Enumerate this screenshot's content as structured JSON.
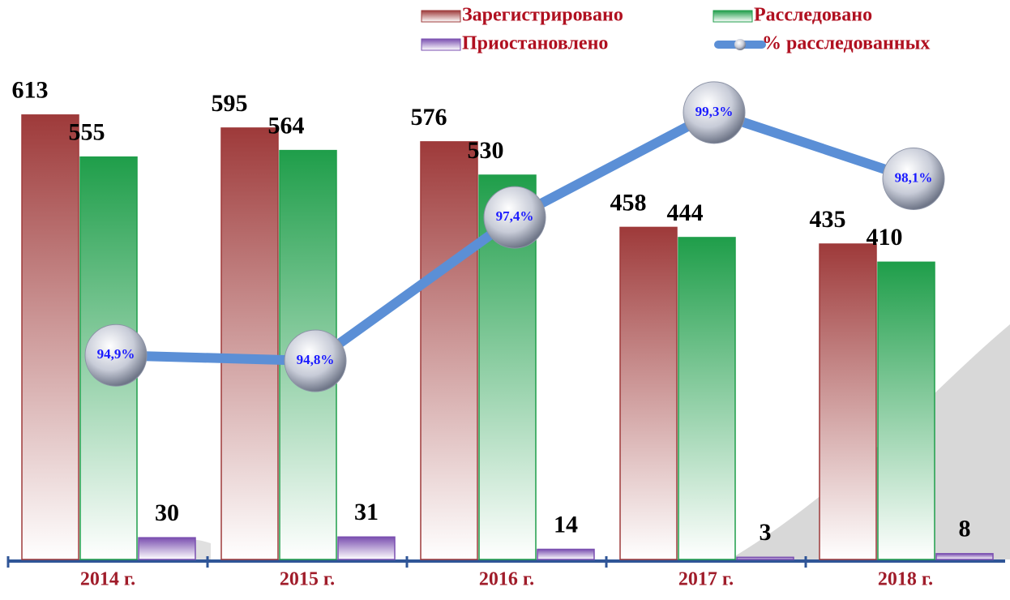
{
  "chart_data": {
    "type": "bar",
    "categories": [
      "2014 г.",
      "2015 г.",
      "2016 г.",
      "2017 г.",
      "2018 г."
    ],
    "series": [
      {
        "name": "Зарегистрировано",
        "color": "#9e3a3a",
        "values": [
          613,
          595,
          576,
          458,
          435
        ]
      },
      {
        "name": "Расследовано",
        "color": "#1f9e4a",
        "values": [
          555,
          564,
          530,
          444,
          410
        ]
      },
      {
        "name": "Приостановлено",
        "color": "#7a4fb0",
        "values": [
          30,
          31,
          14,
          3,
          8
        ]
      },
      {
        "name": "% расследованных",
        "color": "#5b8fd6",
        "type": "line",
        "axis": "y2",
        "values": [
          94.9,
          94.8,
          97.4,
          99.3,
          98.1
        ],
        "value_labels": [
          "94,9%",
          "94,8%",
          "97,4%",
          "99,3%",
          "98,1%"
        ]
      }
    ],
    "ylim": [
      0,
      700
    ],
    "y2lim": [
      91.2,
      100.4
    ]
  }
}
